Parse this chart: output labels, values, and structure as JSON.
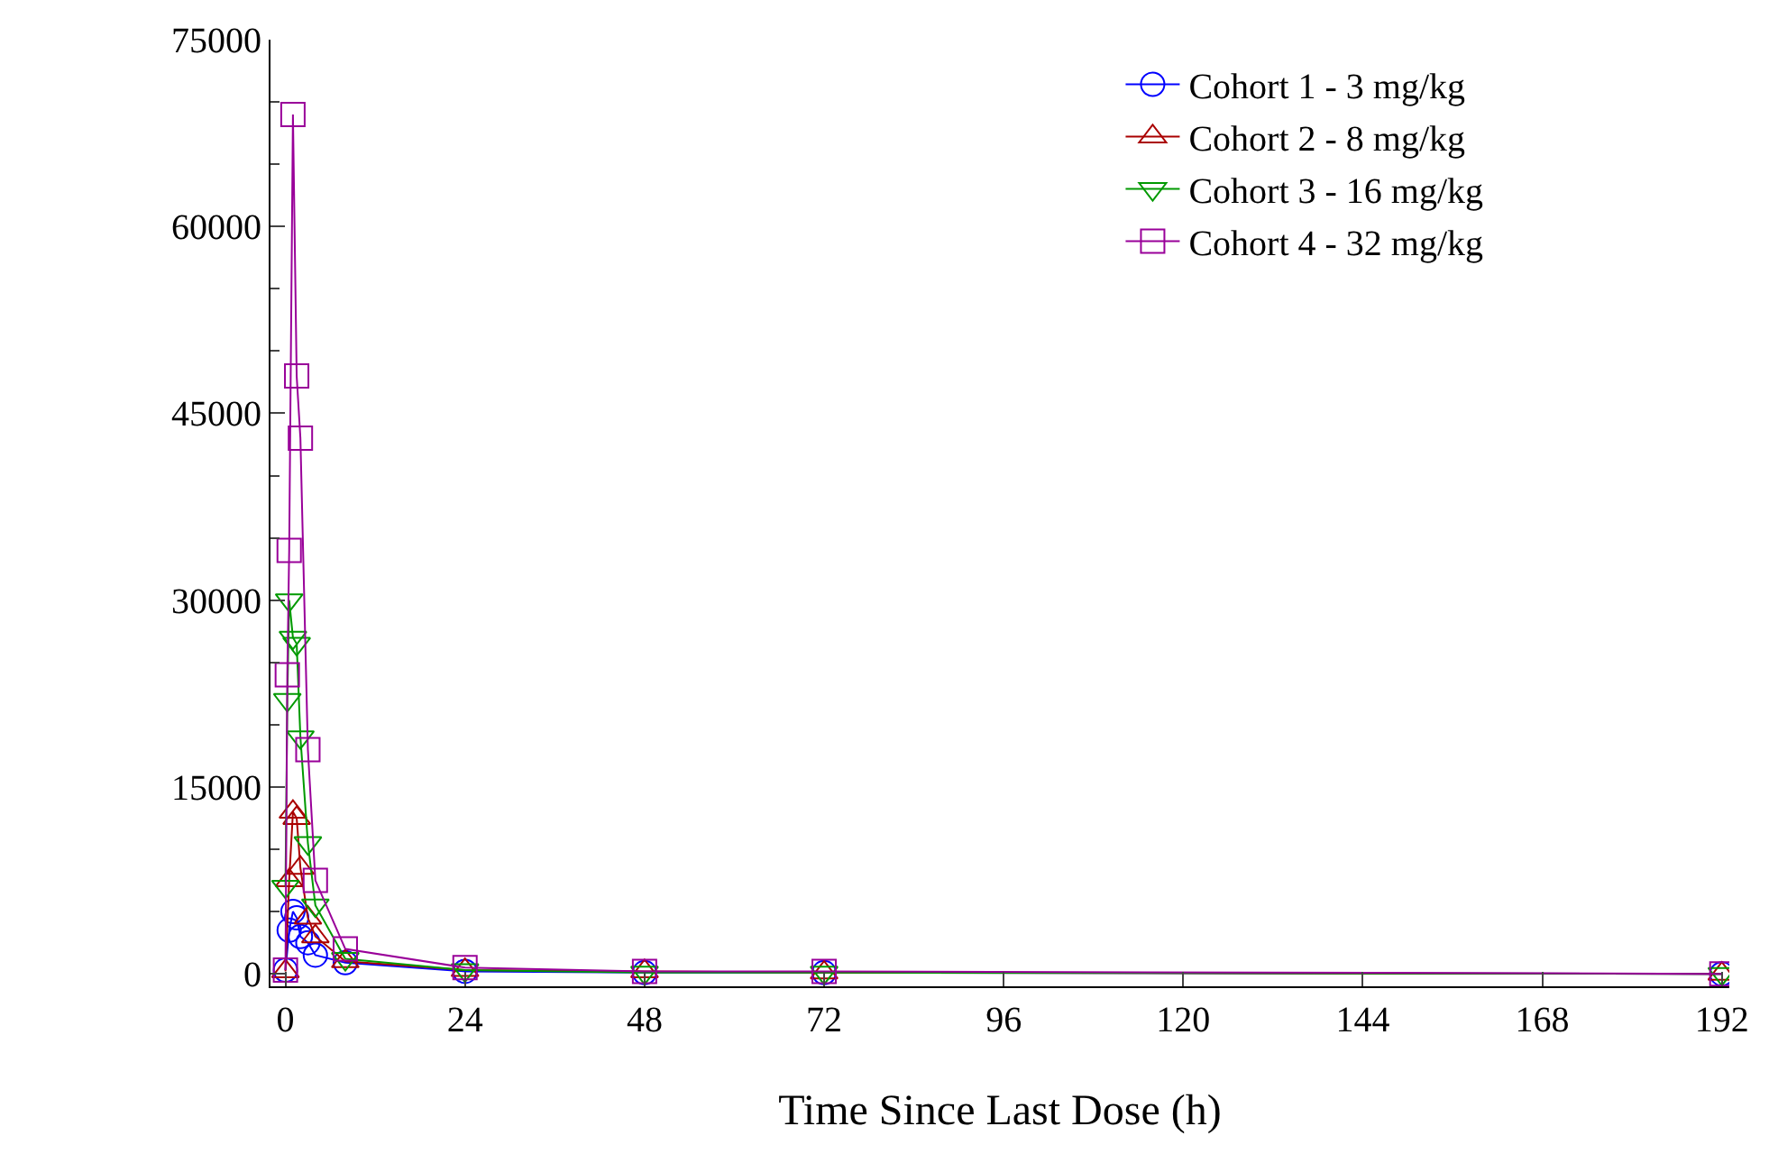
{
  "chart_data": {
    "type": "line",
    "xlabel": "Time Since Last Dose (h)",
    "xlim": [
      -2,
      193
    ],
    "xticks": [
      0,
      24,
      48,
      72,
      96,
      120,
      144,
      168,
      192
    ],
    "ylim": [
      -1000,
      75000
    ],
    "yticks": [
      0,
      15000,
      30000,
      45000,
      60000,
      75000
    ],
    "legend": "top right",
    "series": [
      {
        "name": "Cohort 1 - 3 mg/kg",
        "color": "#0000ff",
        "marker": "circle",
        "x": [
          0,
          0.5,
          1,
          1.5,
          2,
          3,
          4,
          8,
          24,
          48,
          72,
          192
        ],
        "values": [
          300,
          3500,
          5000,
          4500,
          3000,
          2500,
          1500,
          900,
          200,
          100,
          100,
          0
        ]
      },
      {
        "name": "Cohort 2 - 8 mg/kg",
        "color": "#aa0000",
        "marker": "triangle",
        "x": [
          0,
          0.5,
          1,
          1.5,
          2,
          3,
          4,
          8,
          24,
          48,
          72,
          192
        ],
        "values": [
          200,
          7500,
          13000,
          12500,
          8500,
          4500,
          3000,
          1000,
          300,
          200,
          100,
          0
        ]
      },
      {
        "name": "Cohort 3 - 16 mg/kg",
        "color": "#009900",
        "marker": "triangle-down",
        "x": [
          0,
          0.25,
          0.5,
          1,
          1.5,
          2,
          3,
          4,
          8,
          24,
          48,
          72,
          192
        ],
        "values": [
          7000,
          22000,
          30000,
          27000,
          26500,
          19000,
          10500,
          5500,
          1200,
          300,
          100,
          100,
          0
        ]
      },
      {
        "name": "Cohort 4 - 32 mg/kg",
        "color": "#990099",
        "marker": "square",
        "x": [
          0,
          0.25,
          0.5,
          1,
          1.5,
          2,
          3,
          4,
          8,
          24,
          48,
          72,
          192
        ],
        "values": [
          300,
          24000,
          34000,
          69000,
          48000,
          43000,
          18000,
          7500,
          2000,
          500,
          200,
          200,
          0
        ]
      }
    ]
  }
}
